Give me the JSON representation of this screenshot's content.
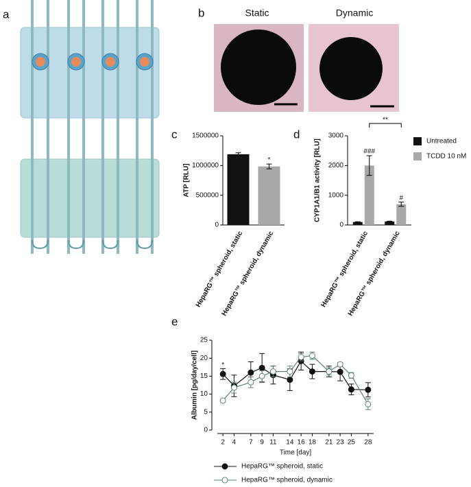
{
  "panel_labels": [
    "a",
    "b",
    "c",
    "d",
    "e"
  ],
  "image_titles": [
    "Static",
    "Dynamic"
  ],
  "chart_data": [
    {
      "type": "bar",
      "ylabel": "ATP [RLU]",
      "categories": [
        "HepaRG™ spheroid, static",
        "HepaRG™ spheroid, dynamic"
      ],
      "values": [
        1190000,
        985000
      ],
      "errors": [
        25000,
        40000
      ],
      "colors": [
        "#111111",
        "#a8a8a8"
      ],
      "ylim": [
        0,
        1500000
      ],
      "yticks": [
        0,
        500000,
        1000000,
        1500000
      ],
      "annotations": [
        "*"
      ]
    },
    {
      "type": "grouped_bar",
      "ylabel": "CYP1A1/B1 activity [RLU]",
      "categories": [
        "HepaRG™ spheroid, static",
        "HepaRG™ spheroid, dynamic"
      ],
      "series": [
        {
          "name": "Untreated",
          "color": "#111111",
          "values": [
            100,
            120
          ],
          "errors": [
            10,
            10
          ]
        },
        {
          "name": "TCDD 10 nM",
          "color": "#a8a8a8",
          "values": [
            2000,
            700
          ],
          "errors": [
            330,
            70
          ]
        }
      ],
      "ylim": [
        0,
        3000
      ],
      "yticks": [
        0,
        1000,
        2000,
        3000
      ],
      "annotations": [
        "###",
        "#",
        "**"
      ]
    },
    {
      "type": "line",
      "xlabel": "Time [day]",
      "ylabel": "Albumin [pg/day/cell]",
      "x": [
        2,
        4,
        7,
        9,
        11,
        14,
        16,
        18,
        21,
        23,
        25,
        28
      ],
      "series": [
        {
          "name": "HepaRG™ spheroid, static",
          "color": "#111111",
          "values": [
            15.6,
            12.3,
            16,
            17.3,
            15.3,
            14,
            19.2,
            16.3,
            16.3,
            16.2,
            11.3,
            11.2
          ],
          "errors": [
            1.5,
            3,
            3,
            4,
            2.5,
            3,
            2.5,
            2,
            1.5,
            2.5,
            1.5,
            2
          ]
        },
        {
          "name": "HepaRG™ spheroid, dynamic",
          "color": "#5f7f7f",
          "values": [
            8.2,
            11.8,
            13.3,
            15,
            16.3,
            16.3,
            20.3,
            20.7,
            16.3,
            18.3,
            15.2,
            7.2
          ],
          "errors": [
            0.3,
            1.5,
            1.5,
            1.5,
            1.5,
            1.5,
            1,
            1,
            1,
            0.5,
            0.8,
            1.5
          ]
        }
      ],
      "xlim": [
        1,
        29
      ],
      "xticks": [
        2,
        4,
        7,
        9,
        11,
        14,
        16,
        18,
        21,
        23,
        25,
        28
      ],
      "ylim": [
        0,
        25
      ],
      "yticks": [
        0,
        5,
        10,
        15,
        20,
        25
      ],
      "annotations": [
        "*"
      ]
    }
  ]
}
